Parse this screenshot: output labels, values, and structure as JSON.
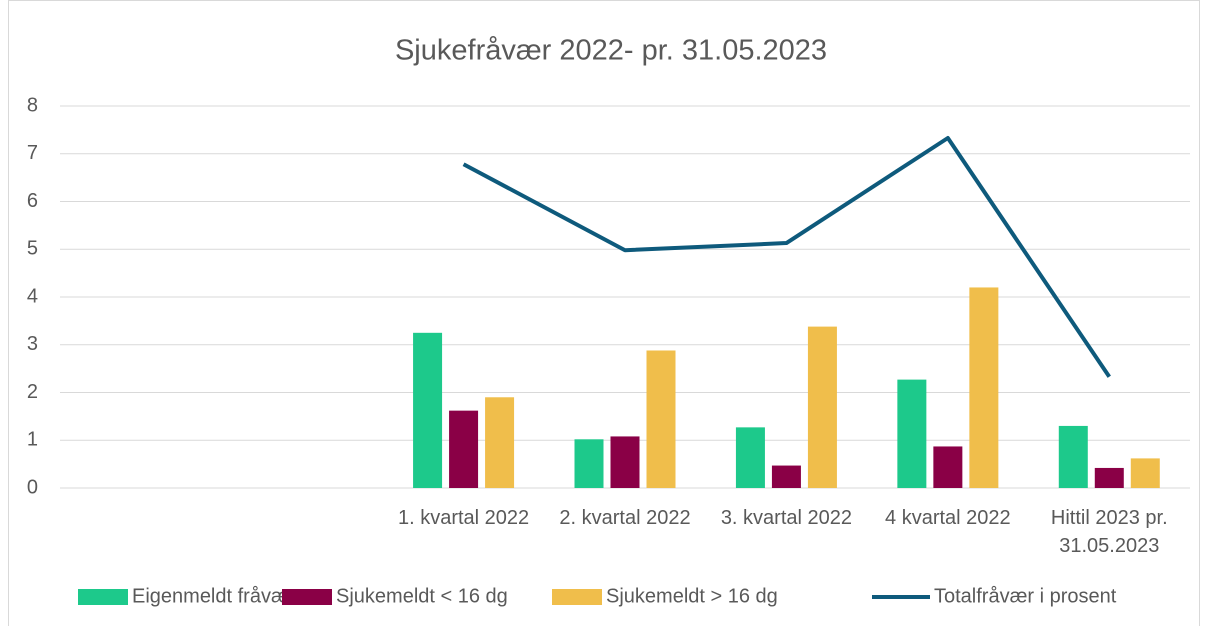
{
  "chart_data": {
    "type": "bar",
    "title": "Sjukefråvær 2022- pr. 31.05.2023",
    "categories": [
      null,
      null,
      "1. kvartal 2022",
      "2. kvartal 2022",
      "3. kvartal 2022",
      "4 kvartal 2022",
      "Hittil 2023 pr. 31.05.2023"
    ],
    "series": [
      {
        "name": "Eigenmeldt fråvær",
        "type": "bar",
        "color": "#1dc98b",
        "values": [
          null,
          null,
          3.25,
          1.02,
          1.27,
          2.27,
          1.3
        ]
      },
      {
        "name": "Sjukemeldt < 16 dg",
        "type": "bar",
        "color": "#8a0046",
        "values": [
          null,
          null,
          1.62,
          1.08,
          0.47,
          0.87,
          0.42
        ]
      },
      {
        "name": "Sjukemeldt > 16 dg",
        "type": "bar",
        "color": "#f0be4b",
        "values": [
          null,
          null,
          1.9,
          2.88,
          3.38,
          4.2,
          0.62
        ]
      },
      {
        "name": "Totalfråvær i prosent",
        "type": "line",
        "color": "#0e5a7c",
        "values": [
          null,
          null,
          6.78,
          4.98,
          5.13,
          7.33,
          2.33
        ]
      }
    ],
    "ylim": [
      0,
      8
    ],
    "yticks": [
      0,
      1,
      2,
      3,
      4,
      5,
      6,
      7,
      8
    ],
    "grid": true,
    "legend": "bottom"
  }
}
